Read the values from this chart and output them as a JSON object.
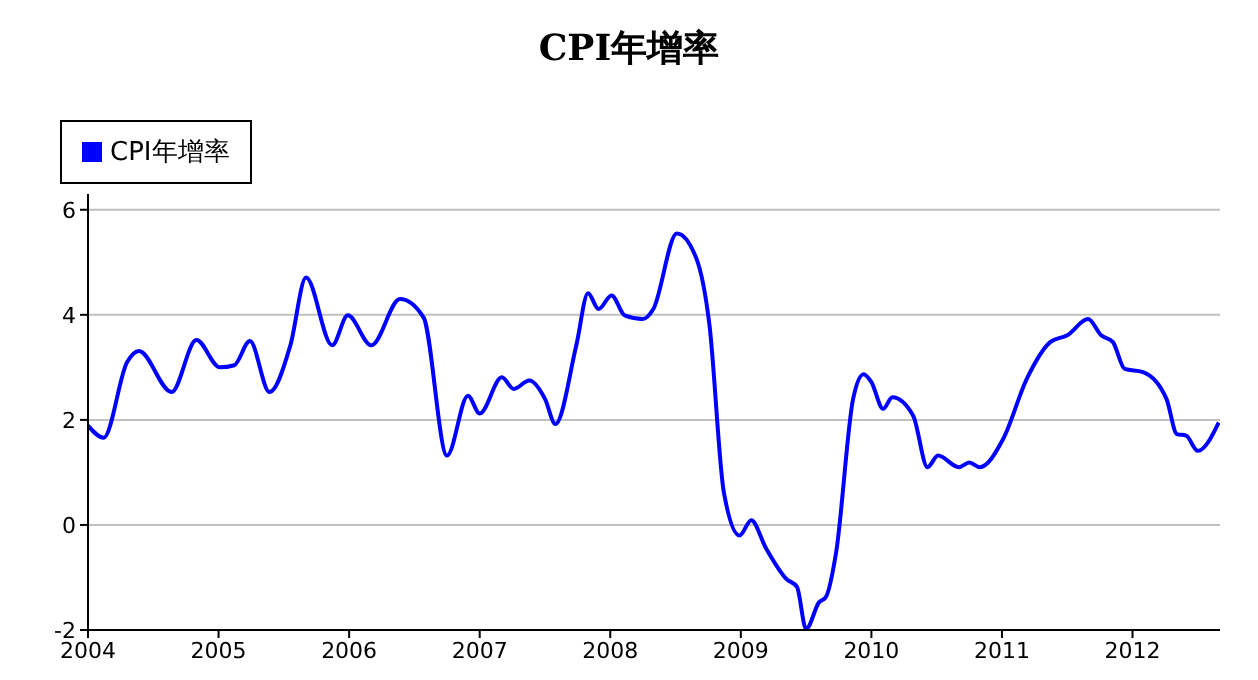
{
  "chart_data": {
    "type": "line",
    "title": "CPI年增率",
    "legend": "top left",
    "grid": "y",
    "marker": "none",
    "line_style": "solid",
    "xlim": [
      2004,
      2012.67
    ],
    "xticks": [
      2004,
      2005,
      2006,
      2007,
      2008,
      2009,
      2010,
      2011,
      2012
    ],
    "ylim": [
      -2,
      6.3
    ],
    "yticks": [
      -2,
      0,
      2,
      4,
      6
    ],
    "series": [
      {
        "name": "CPI年增率",
        "color": "#0000ff",
        "x": [
          2004.0,
          2004.12,
          2004.3,
          2004.39,
          2004.64,
          2004.83,
          2005.01,
          2005.12,
          2005.24,
          2005.39,
          2005.55,
          2005.67,
          2005.87,
          2005.99,
          2006.17,
          2006.39,
          2006.57,
          2006.75,
          2006.91,
          2007.0,
          2007.17,
          2007.26,
          2007.38,
          2007.5,
          2007.58,
          2007.74,
          2007.83,
          2007.91,
          2008.01,
          2008.11,
          2008.25,
          2008.33,
          2008.51,
          2008.66,
          2008.76,
          2008.87,
          2008.99,
          2009.08,
          2009.19,
          2009.35,
          2009.43,
          2009.5,
          2009.6,
          2009.65,
          2009.73,
          2009.86,
          2009.94,
          2010.0,
          2010.09,
          2010.16,
          2010.32,
          2010.43,
          2010.51,
          2010.67,
          2010.75,
          2010.83,
          2011.01,
          2011.19,
          2011.37,
          2011.5,
          2011.66,
          2011.76,
          2011.85,
          2011.94,
          2012.08,
          2012.26,
          2012.34,
          2012.41,
          2012.5,
          2012.66
        ],
        "values": [
          1.89,
          1.66,
          3.1,
          3.31,
          2.53,
          3.52,
          3.0,
          3.04,
          3.5,
          2.53,
          3.42,
          4.71,
          3.42,
          3.99,
          3.42,
          4.3,
          3.95,
          1.32,
          2.46,
          2.12,
          2.81,
          2.59,
          2.75,
          2.4,
          1.92,
          3.42,
          4.41,
          4.11,
          4.37,
          3.99,
          3.92,
          4.11,
          5.55,
          5.07,
          3.8,
          0.62,
          -0.2,
          0.09,
          -0.43,
          -1.03,
          -1.18,
          -1.98,
          -1.47,
          -1.38,
          -0.52,
          2.4,
          2.87,
          2.72,
          2.21,
          2.43,
          2.08,
          1.1,
          1.32,
          1.1,
          1.19,
          1.1,
          1.64,
          2.78,
          3.48,
          3.61,
          3.92,
          3.61,
          3.48,
          2.97,
          2.91,
          2.4,
          1.73,
          1.7,
          1.41,
          1.95
        ]
      }
    ]
  }
}
